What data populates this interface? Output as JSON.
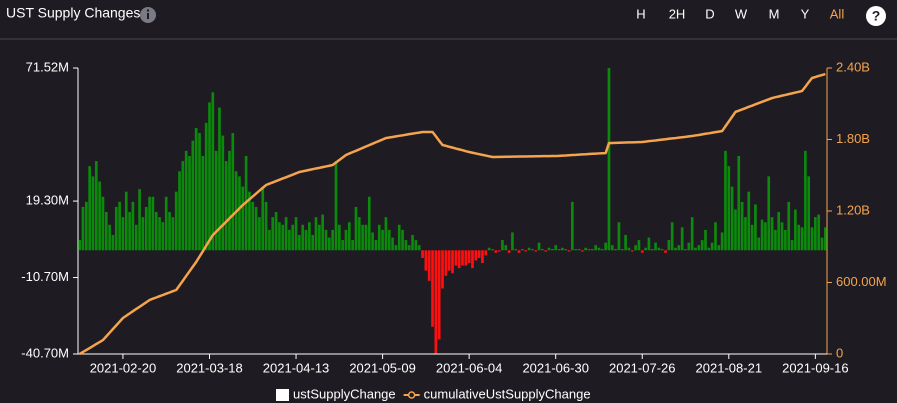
{
  "header": {
    "title": "UST Supply Changes",
    "ranges": [
      "H",
      "2H",
      "D",
      "W",
      "M",
      "Y",
      "All"
    ],
    "active_range": 6
  },
  "chart_data": {
    "type": "bar",
    "x": [
      "2021-02-07",
      "2021-02-08",
      "2021-02-09",
      "2021-02-10",
      "2021-02-11",
      "2021-02-12",
      "2021-02-13",
      "2021-02-14",
      "2021-02-15",
      "2021-02-16",
      "2021-02-17",
      "2021-02-18",
      "2021-02-19",
      "2021-02-20",
      "2021-02-21",
      "2021-02-22",
      "2021-02-23",
      "2021-02-24",
      "2021-02-25",
      "2021-02-26",
      "2021-02-27",
      "2021-02-28",
      "2021-03-01",
      "2021-03-02",
      "2021-03-03",
      "2021-03-04",
      "2021-03-05",
      "2021-03-06",
      "2021-03-07",
      "2021-03-08",
      "2021-03-09",
      "2021-03-10",
      "2021-03-11",
      "2021-03-12",
      "2021-03-13",
      "2021-03-14",
      "2021-03-15",
      "2021-03-16",
      "2021-03-17",
      "2021-03-18",
      "2021-03-19",
      "2021-03-20",
      "2021-03-21",
      "2021-03-22",
      "2021-03-23",
      "2021-03-24",
      "2021-03-25",
      "2021-03-26",
      "2021-03-27",
      "2021-03-28",
      "2021-03-29",
      "2021-03-30",
      "2021-03-31",
      "2021-04-01",
      "2021-04-02",
      "2021-04-03",
      "2021-04-04",
      "2021-04-05",
      "2021-04-06",
      "2021-04-07",
      "2021-04-08",
      "2021-04-09",
      "2021-04-10",
      "2021-04-11",
      "2021-04-12",
      "2021-04-13",
      "2021-04-14",
      "2021-04-15",
      "2021-04-16",
      "2021-04-17",
      "2021-04-18",
      "2021-04-19",
      "2021-04-20",
      "2021-04-21",
      "2021-04-22",
      "2021-04-23",
      "2021-04-24",
      "2021-04-25",
      "2021-04-26",
      "2021-04-27",
      "2021-04-28",
      "2021-04-29",
      "2021-04-30",
      "2021-05-01",
      "2021-05-02",
      "2021-05-03",
      "2021-05-04",
      "2021-05-05",
      "2021-05-06",
      "2021-05-07",
      "2021-05-08",
      "2021-05-09",
      "2021-05-10",
      "2021-05-11",
      "2021-05-12",
      "2021-05-13",
      "2021-05-14",
      "2021-05-15",
      "2021-05-16",
      "2021-05-17",
      "2021-05-18",
      "2021-05-19",
      "2021-05-20",
      "2021-05-21",
      "2021-05-22",
      "2021-05-23",
      "2021-05-24",
      "2021-05-25",
      "2021-05-26",
      "2021-05-27",
      "2021-05-28",
      "2021-05-29",
      "2021-05-30",
      "2021-05-31",
      "2021-06-01",
      "2021-06-02",
      "2021-06-03",
      "2021-06-04",
      "2021-06-05",
      "2021-06-06",
      "2021-06-07",
      "2021-06-08",
      "2021-06-09",
      "2021-06-10",
      "2021-06-11",
      "2021-06-12",
      "2021-06-13",
      "2021-06-14",
      "2021-06-15",
      "2021-06-16",
      "2021-06-17",
      "2021-06-18",
      "2021-06-19",
      "2021-06-20",
      "2021-06-21",
      "2021-06-22",
      "2021-06-23",
      "2021-06-24",
      "2021-06-25",
      "2021-06-26",
      "2021-06-27",
      "2021-06-28",
      "2021-06-29",
      "2021-06-30",
      "2021-07-01",
      "2021-07-02",
      "2021-07-03",
      "2021-07-04",
      "2021-07-05",
      "2021-07-06",
      "2021-07-07",
      "2021-07-08",
      "2021-07-09",
      "2021-07-10",
      "2021-07-11",
      "2021-07-12",
      "2021-07-13",
      "2021-07-14",
      "2021-07-15",
      "2021-07-16",
      "2021-07-17",
      "2021-07-18",
      "2021-07-19",
      "2021-07-20",
      "2021-07-21",
      "2021-07-22",
      "2021-07-23",
      "2021-07-24",
      "2021-07-25",
      "2021-07-26",
      "2021-07-27",
      "2021-07-28",
      "2021-07-29",
      "2021-07-30",
      "2021-07-31",
      "2021-08-01",
      "2021-08-02",
      "2021-08-03",
      "2021-08-04",
      "2021-08-05",
      "2021-08-06",
      "2021-08-07",
      "2021-08-08",
      "2021-08-09",
      "2021-08-10",
      "2021-08-11",
      "2021-08-12",
      "2021-08-13",
      "2021-08-14",
      "2021-08-15",
      "2021-08-16",
      "2021-08-17",
      "2021-08-18",
      "2021-08-19",
      "2021-08-20",
      "2021-08-21",
      "2021-08-22",
      "2021-08-23",
      "2021-08-24",
      "2021-08-25",
      "2021-08-26",
      "2021-08-27",
      "2021-08-28",
      "2021-08-29",
      "2021-08-30",
      "2021-08-31",
      "2021-09-01",
      "2021-09-02",
      "2021-09-03",
      "2021-09-04",
      "2021-09-05",
      "2021-09-06",
      "2021-09-07",
      "2021-09-08",
      "2021-09-09",
      "2021-09-10",
      "2021-09-11",
      "2021-09-12",
      "2021-09-13",
      "2021-09-14",
      "2021-09-15",
      "2021-09-16",
      "2021-09-17",
      "2021-09-18",
      "2021-09-19"
    ],
    "xticks": [
      "2021-02-20",
      "2021-03-18",
      "2021-04-13",
      "2021-05-09",
      "2021-06-04",
      "2021-06-30",
      "2021-07-26",
      "2021-08-21",
      "2021-09-16"
    ],
    "ylim": [
      -40.7,
      71.52
    ],
    "yticks": [
      {
        "value": -40.7,
        "label": "-40.70M"
      },
      {
        "value": -10.7,
        "label": "-10.70M"
      },
      {
        "value": 19.3,
        "label": "19.30M"
      },
      {
        "value": 71.52,
        "label": "71.52M"
      }
    ],
    "y2lim": [
      0,
      2400
    ],
    "y2ticks": [
      0,
      {
        "value": 600,
        "label": "600.00M"
      },
      {
        "value": 1200,
        "label": "1.20B"
      },
      {
        "value": 1800,
        "label": "1.80B"
      },
      {
        "value": 2400,
        "label": "2.40B"
      }
    ],
    "series": [
      {
        "name": "ustSupplyChange",
        "type": "bar",
        "color": "#0b8a0b",
        "negative_color": "#ff1010",
        "legend_color": "#ffffff",
        "values": [
          4,
          17,
          19,
          33,
          29,
          35,
          27,
          21,
          15,
          10,
          6,
          17,
          19,
          13,
          23,
          15,
          19,
          10,
          24,
          13,
          17,
          21,
          21,
          15,
          13,
          11,
          21,
          15,
          13,
          23,
          31,
          35,
          39,
          37,
          43,
          48,
          46,
          37,
          50,
          58,
          62,
          39,
          56,
          45,
          35,
          39,
          46,
          31,
          29,
          25,
          37,
          23,
          19,
          17,
          13,
          25,
          19,
          8,
          13,
          15,
          11,
          10,
          13,
          8,
          10,
          13,
          6,
          10,
          8,
          11,
          6,
          13,
          10,
          14,
          8,
          5,
          8,
          35,
          10,
          4,
          8,
          11,
          4,
          17,
          13,
          10,
          10,
          21,
          7,
          4,
          10,
          8,
          13,
          8,
          5,
          2,
          10,
          8,
          4,
          2,
          6,
          4,
          2,
          -3,
          -8,
          -12,
          -30,
          -40.5,
          -35,
          -15,
          -10,
          -8,
          -9,
          -6,
          -7,
          -6,
          -6,
          -5,
          -7,
          -4,
          -3,
          -5,
          -2,
          1,
          0.5,
          -1,
          -0.5,
          4,
          2,
          -1,
          7,
          0.5,
          -1,
          0.5,
          -0.5,
          1,
          0.5,
          -0.5,
          3,
          0.5,
          -0.5,
          1,
          0.5,
          2,
          0.5,
          1,
          0.5,
          -0.5,
          19,
          0.5,
          0.5,
          -0.5,
          1,
          0.5,
          0.5,
          2,
          1,
          0.5,
          3,
          71.52,
          2,
          0.5,
          11,
          0.5,
          6,
          1,
          -0.5,
          2,
          4,
          -1,
          1,
          5,
          0.5,
          3,
          1,
          0.5,
          -1,
          4,
          11,
          1,
          2,
          9,
          0.5,
          3,
          13,
          1,
          2,
          4,
          8,
          1,
          3,
          11,
          2,
          7,
          39,
          33,
          25,
          16,
          37,
          19,
          13,
          23,
          10,
          18,
          5,
          12,
          11,
          29,
          13,
          8,
          15,
          11,
          8,
          19,
          4,
          16,
          10,
          9,
          39,
          29,
          9,
          13,
          14,
          5,
          9
        ]
      },
      {
        "name": "cumulativeUstSupplyChange",
        "type": "line",
        "axis": "y2",
        "color": "#f5a34c",
        "values": [
          0,
          17,
          33,
          50,
          67,
          84,
          100,
          117,
          148,
          179,
          210,
          240,
          271,
          302,
          321,
          340,
          359,
          378,
          396,
          415,
          434,
          453,
          464,
          474,
          485,
          495,
          506,
          516,
          527,
          537,
          576,
          615,
          655,
          694,
          733,
          772,
          817,
          862,
          908,
          953,
          998,
          1026,
          1054,
          1082,
          1110,
          1138,
          1166,
          1194,
          1222,
          1250,
          1274,
          1298,
          1322,
          1346,
          1370,
          1394,
          1418,
          1429,
          1440,
          1451,
          1462,
          1473,
          1483,
          1494,
          1505,
          1516,
          1527,
          1533,
          1539,
          1545,
          1551,
          1557,
          1562,
          1568,
          1574,
          1580,
          1586,
          1607,
          1628,
          1649,
          1670,
          1682,
          1694,
          1705,
          1717,
          1729,
          1741,
          1753,
          1765,
          1777,
          1788,
          1800,
          1812,
          1817,
          1821,
          1826,
          1831,
          1835,
          1840,
          1845,
          1849,
          1854,
          1858,
          1863,
          1863,
          1863,
          1863,
          1827,
          1790,
          1754,
          1747,
          1739,
          1732,
          1724,
          1717,
          1710,
          1702,
          1695,
          1689,
          1683,
          1677,
          1671,
          1665,
          1659,
          1653,
          1653,
          1654,
          1654,
          1655,
          1655,
          1656,
          1656,
          1657,
          1657,
          1657,
          1658,
          1658,
          1659,
          1659,
          1660,
          1660,
          1660,
          1661,
          1661,
          1663,
          1665,
          1666,
          1668,
          1670,
          1671,
          1673,
          1675,
          1676,
          1678,
          1680,
          1681,
          1683,
          1685,
          1686,
          1770,
          1771,
          1772,
          1773,
          1774,
          1775,
          1776,
          1776,
          1777,
          1778,
          1779,
          1782,
          1786,
          1789,
          1792,
          1796,
          1799,
          1802,
          1806,
          1809,
          1812,
          1816,
          1819,
          1822,
          1826,
          1829,
          1834,
          1838,
          1843,
          1848,
          1852,
          1857,
          1862,
          1866,
          1871,
          1911,
          1951,
          1991,
          2031,
          2042,
          2052,
          2063,
          2074,
          2084,
          2095,
          2106,
          2116,
          2127,
          2137,
          2148,
          2155,
          2161,
          2168,
          2174,
          2181,
          2187,
          2194,
          2200,
          2207,
          2243,
          2280,
          2316,
          2324,
          2333,
          2341,
          2349
        ]
      }
    ]
  }
}
